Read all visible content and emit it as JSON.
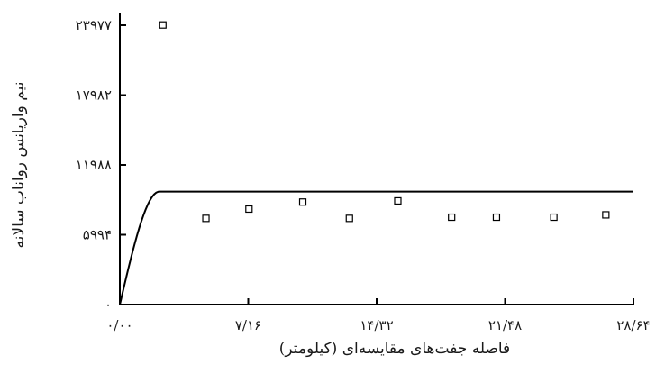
{
  "chart_data": {
    "type": "scatter",
    "title": "",
    "xlabel": "فاصله جفت‌های مقایسه‌ای (کیلومتر)",
    "ylabel": "نیم واریانس رواناب سالانه",
    "x_ticks": [
      {
        "value": 0,
        "label": "۰/۰۰"
      },
      {
        "value": 7.16,
        "label": "۷/۱۶"
      },
      {
        "value": 14.32,
        "label": "۱۴/۳۲"
      },
      {
        "value": 21.48,
        "label": "۲۱/۴۸"
      },
      {
        "value": 28.64,
        "label": "۲۸/۶۴"
      }
    ],
    "y_ticks": [
      {
        "value": 0,
        "label": "۰"
      },
      {
        "value": 5994,
        "label": "۵۹۹۴"
      },
      {
        "value": 11988,
        "label": "۱۱۹۸۸"
      },
      {
        "value": 17982,
        "label": "۱۷۹۸۲"
      },
      {
        "value": 23977,
        "label": "۲۳۹۷۷"
      }
    ],
    "xlim": [
      0,
      28.64
    ],
    "ylim": [
      0,
      23977
    ],
    "grid": false,
    "legend": "none",
    "series": [
      {
        "kind": "points",
        "marker": "open-square",
        "x": [
          2.4,
          4.8,
          7.2,
          10.2,
          12.8,
          15.5,
          18.5,
          21.0,
          24.2,
          27.1
        ],
        "y": [
          24000,
          7400,
          8200,
          8800,
          7400,
          8900,
          7500,
          7500,
          7500,
          7700
        ]
      },
      {
        "kind": "model-curve",
        "model": "spherical",
        "nugget": 0,
        "sill": 9700,
        "range": 2.2
      }
    ]
  }
}
